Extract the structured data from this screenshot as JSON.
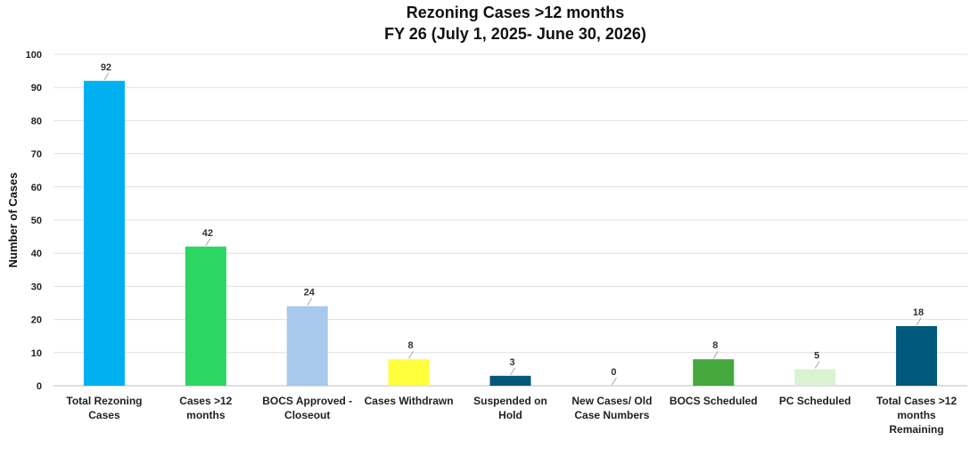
{
  "chart_data": {
    "type": "bar",
    "title": [
      "Rezoning Cases >12 months",
      "FY 26 (July 1, 2025- June 30, 2026)"
    ],
    "ylabel": "Number of Cases",
    "xlabel": "",
    "ylim": [
      0,
      100
    ],
    "yticks": [
      0,
      10,
      20,
      30,
      40,
      50,
      60,
      70,
      80,
      90,
      100
    ],
    "grid": true,
    "legend": "none",
    "categories": [
      [
        "Total Rezoning",
        "Cases"
      ],
      [
        "Cases >12",
        "months"
      ],
      [
        "BOCS Approved -",
        "Closeout"
      ],
      [
        "Cases Withdrawn"
      ],
      [
        "Suspended on",
        "Hold"
      ],
      [
        "New Cases/ Old",
        "Case Numbers"
      ],
      [
        "BOCS Scheduled"
      ],
      [
        "PC Scheduled"
      ],
      [
        "Total  Cases >12",
        "months",
        "Remaining"
      ]
    ],
    "values": [
      92,
      42,
      24,
      8,
      3,
      0,
      8,
      5,
      18
    ],
    "colors": [
      "#00b0f0",
      "#2bd662",
      "#a6c9ec",
      "#ffff3b",
      "#00587a",
      "#d9d9d9",
      "#44a83c",
      "#d9f2d0",
      "#00587a"
    ]
  }
}
